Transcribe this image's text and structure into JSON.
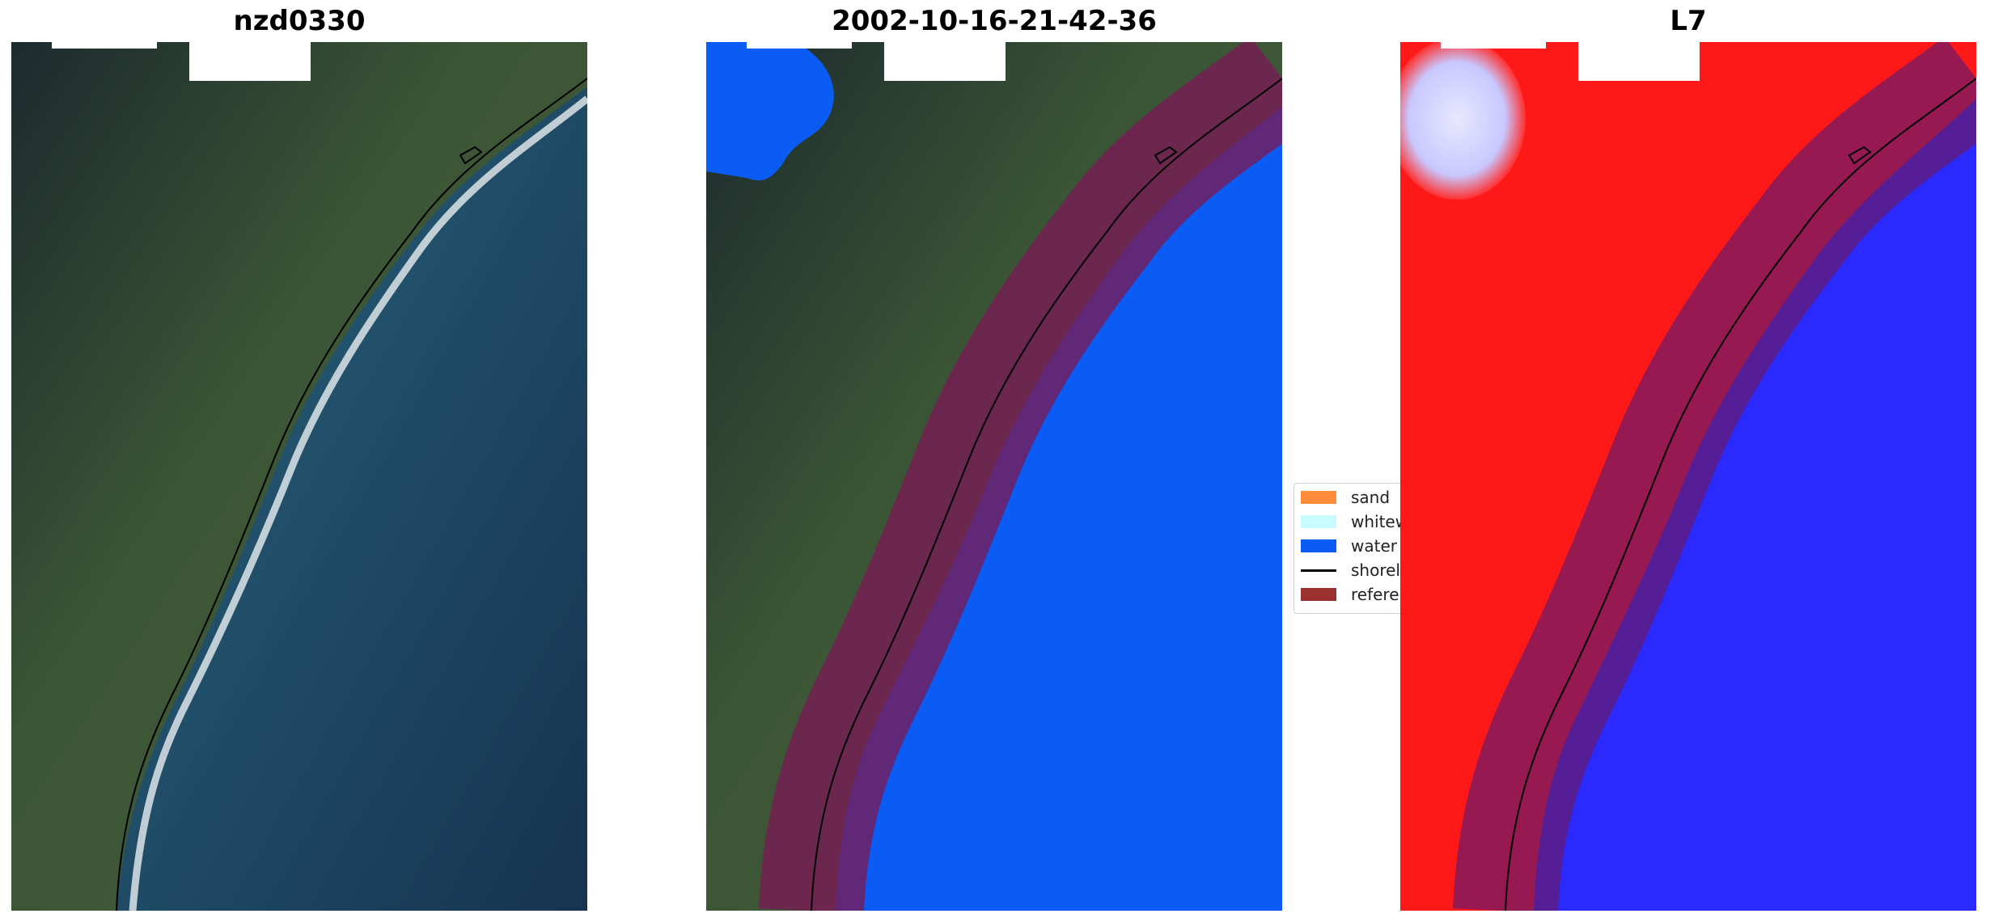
{
  "panels": [
    {
      "title": "nzd0330"
    },
    {
      "title": "2002-10-16-21-42-36"
    },
    {
      "title": "L7"
    }
  ],
  "legend": {
    "items": [
      {
        "label": "sand",
        "color": "#ff8c3a",
        "kind": "patch"
      },
      {
        "label": "whitewater",
        "color": "#c8fbff",
        "kind": "patch"
      },
      {
        "label": "water",
        "color": "#0a5cf5",
        "kind": "patch"
      },
      {
        "label": "shoreline",
        "color": "#000000",
        "kind": "line"
      },
      {
        "label": "reference shoreline buffer",
        "color": "#9b3030",
        "kind": "patch"
      }
    ]
  },
  "colors": {
    "sea": "#1e4a66",
    "land": "#3e5a3a",
    "water_class": "#0a5cf5",
    "buffer": "#8a1f4a",
    "mndwi_land": "#ff1010",
    "mndwi_water": "#1010ff"
  }
}
